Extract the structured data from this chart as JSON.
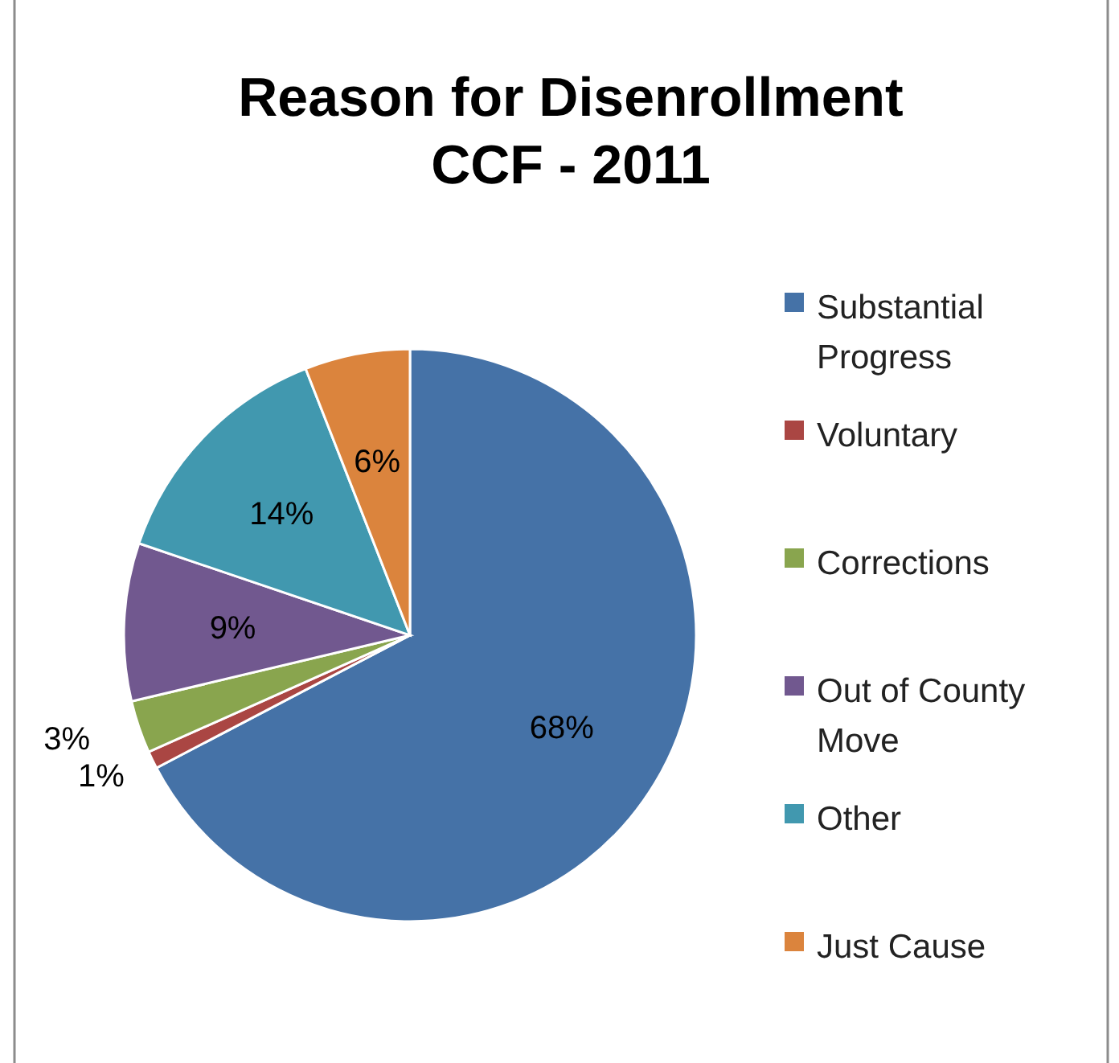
{
  "chart_data": {
    "type": "pie",
    "title": "Reason for Disenrollment\nCCF - 2011",
    "categories": [
      "Substantial Progress",
      "Voluntary",
      "Corrections",
      "Out of County Move",
      "Other",
      "Just Cause"
    ],
    "values": [
      68,
      1,
      3,
      9,
      14,
      6
    ],
    "colors": [
      "#4572a7",
      "#aa4643",
      "#89a54e",
      "#71588f",
      "#4198af",
      "#db843d"
    ],
    "value_labels": [
      "68%",
      "1%",
      "3%",
      "9%",
      "14%",
      "6%"
    ],
    "legend": "right"
  }
}
